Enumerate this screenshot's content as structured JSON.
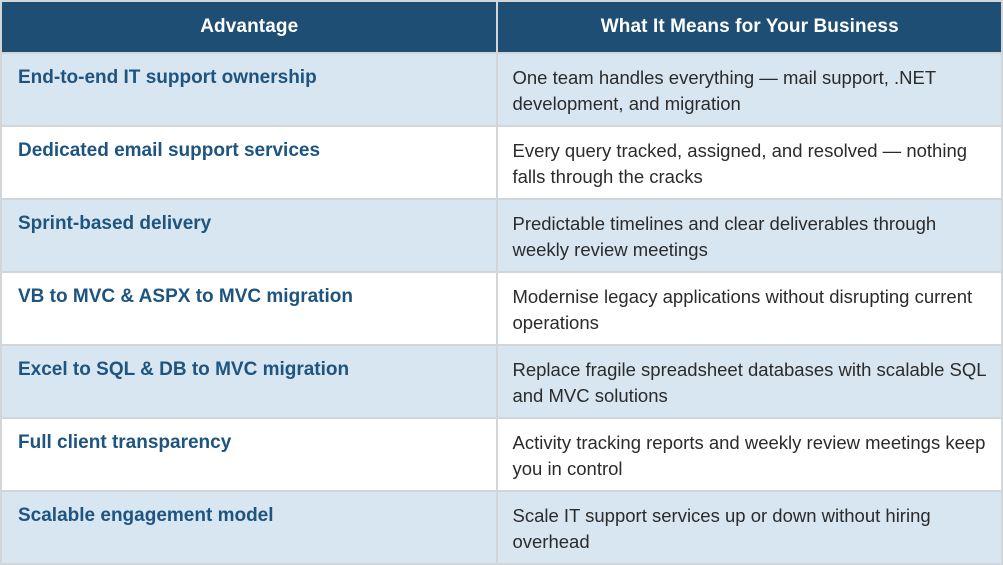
{
  "table": {
    "columns": [
      {
        "label": "Advantage"
      },
      {
        "label": "What It Means for Your Business"
      }
    ],
    "rows": [
      {
        "advantage": "End-to-end IT support ownership",
        "meaning": "One team handles everything — mail support, .NET development, and migration"
      },
      {
        "advantage": "Dedicated email support services",
        "meaning": "Every query tracked, assigned, and resolved — nothing falls through the cracks"
      },
      {
        "advantage": "Sprint-based delivery",
        "meaning": "Predictable timelines and clear deliverables through weekly review meetings"
      },
      {
        "advantage": "VB to MVC & ASPX to MVC migration",
        "meaning": "Modernise legacy applications without disrupting current operations"
      },
      {
        "advantage": "Excel to SQL & DB to MVC migration",
        "meaning": "Replace fragile spreadsheet databases with scalable SQL and MVC solutions"
      },
      {
        "advantage": "Full client transparency",
        "meaning": "Activity tracking reports and weekly review meetings keep you in control"
      },
      {
        "advantage": "Scalable engagement model",
        "meaning": "Scale IT support services up or down without hiring overhead"
      }
    ],
    "colors": {
      "header_bg": "#1f4e74",
      "header_text": "#ffffff",
      "row_alt_bg": "#d7e6f0",
      "row_bg": "#ffffff",
      "advantage_text": "#1e5480",
      "meaning_text": "#2b2b2b",
      "grid_border": "#d2d6d8"
    }
  }
}
